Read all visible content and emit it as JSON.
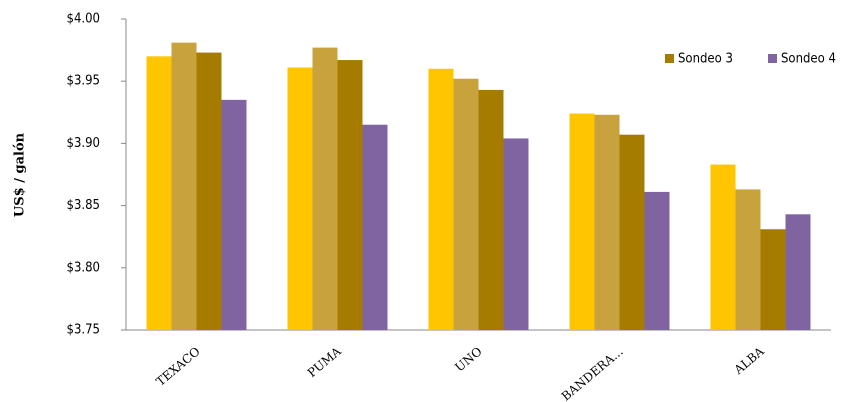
{
  "chart_data": {
    "type": "bar",
    "y_label": "US$ / galón",
    "categories": [
      "TEXACO",
      "PUMA",
      "UNO",
      "BANDERA...",
      "ALBA"
    ],
    "series": [
      {
        "color": "#ffc600",
        "values": [
          3.97,
          3.961,
          3.96,
          3.924,
          3.883
        ]
      },
      {
        "color": "#c8a23c",
        "values": [
          3.981,
          3.977,
          3.952,
          3.923,
          3.863
        ]
      },
      {
        "name": "Sondeo 3",
        "color": "#a67c00",
        "values": [
          3.973,
          3.967,
          3.943,
          3.907,
          3.831
        ]
      },
      {
        "name": "Sondeo 4",
        "color": "#8064a2",
        "values": [
          3.935,
          3.915,
          3.904,
          3.861,
          3.843
        ]
      }
    ],
    "ylim": [
      3.75,
      4.0
    ],
    "yticks": [
      {
        "value": 3.75,
        "label": "$3.75"
      },
      {
        "value": 3.8,
        "label": "$3.80"
      },
      {
        "value": 3.85,
        "label": "$3.85"
      },
      {
        "value": 3.9,
        "label": "$3.90"
      },
      {
        "value": 3.95,
        "label": "$3.95"
      },
      {
        "value": 4.0,
        "label": "$4.00"
      }
    ],
    "legend": "top-right"
  }
}
